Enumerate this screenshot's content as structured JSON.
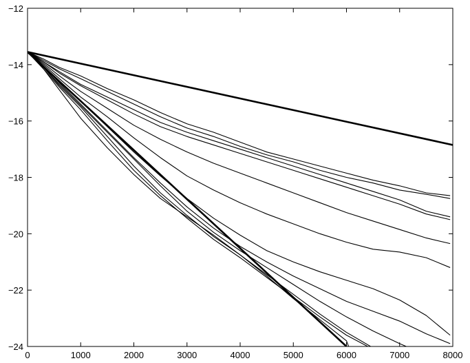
{
  "chart_data": {
    "type": "line",
    "title": "",
    "xlabel": "",
    "ylabel": "",
    "xlim": [
      0,
      8000
    ],
    "ylim": [
      -24,
      -12
    ],
    "grid": false,
    "x_ticks": [
      0,
      1000,
      2000,
      3000,
      4000,
      5000,
      6000,
      7000,
      8000
    ],
    "y_ticks": [
      -24,
      -22,
      -20,
      -18,
      -16,
      -14,
      -12
    ],
    "x_tick_labels": [
      "0",
      "1000",
      "2000",
      "3000",
      "4000",
      "5000",
      "6000",
      "7000",
      "8000"
    ],
    "y_tick_labels": [
      "−24",
      "−22",
      "−20",
      "−18",
      "−16",
      "−14",
      "−12"
    ],
    "series": [
      {
        "style": "bold",
        "x": [
          0,
          8000
        ],
        "values": [
          -13.55,
          -16.85
        ]
      },
      {
        "style": "bold",
        "x": [
          0,
          6000
        ],
        "values": [
          -13.55,
          -24.0
        ]
      },
      {
        "style": "thin",
        "x": [
          0,
          300,
          600,
          1000,
          1500,
          2000,
          2500,
          3000,
          3500,
          4000,
          4500,
          5000,
          5500,
          6000,
          6500,
          7000,
          7500,
          7950
        ],
        "values": [
          -13.55,
          -13.8,
          -14.1,
          -14.4,
          -14.85,
          -15.25,
          -15.7,
          -16.1,
          -16.4,
          -16.75,
          -17.1,
          -17.35,
          -17.6,
          -17.85,
          -18.1,
          -18.3,
          -18.55,
          -18.65
        ]
      },
      {
        "style": "thin",
        "x": [
          0,
          300,
          600,
          1000,
          1500,
          2000,
          2500,
          3000,
          3500,
          4000,
          4500,
          5000,
          5500,
          6000,
          6500,
          7000,
          7500,
          7950
        ],
        "values": [
          -13.55,
          -13.85,
          -14.15,
          -14.5,
          -14.95,
          -15.4,
          -15.85,
          -16.25,
          -16.55,
          -16.9,
          -17.2,
          -17.45,
          -17.75,
          -18.0,
          -18.2,
          -18.45,
          -18.6,
          -18.75
        ]
      },
      {
        "style": "thin",
        "x": [
          0,
          300,
          600,
          1000,
          1500,
          2000,
          2500,
          3000,
          3500,
          4000,
          4500,
          5000,
          5500,
          6000,
          6500,
          7000,
          7500,
          7950
        ],
        "values": [
          -13.55,
          -13.9,
          -14.25,
          -14.7,
          -15.15,
          -15.6,
          -16.05,
          -16.4,
          -16.7,
          -17.0,
          -17.3,
          -17.6,
          -17.9,
          -18.2,
          -18.5,
          -18.8,
          -19.2,
          -19.4
        ]
      },
      {
        "style": "thin",
        "x": [
          0,
          300,
          600,
          1000,
          1500,
          2000,
          2500,
          3000,
          3500,
          4000,
          4500,
          5000,
          5500,
          6000,
          6500,
          7000,
          7500,
          7950
        ],
        "values": [
          -13.55,
          -13.9,
          -14.3,
          -14.75,
          -15.25,
          -15.75,
          -16.2,
          -16.55,
          -16.85,
          -17.15,
          -17.45,
          -17.75,
          -18.05,
          -18.35,
          -18.65,
          -18.95,
          -19.3,
          -19.5
        ]
      },
      {
        "style": "thin",
        "x": [
          0,
          300,
          600,
          1000,
          1500,
          2000,
          2500,
          3000,
          3500,
          4000,
          4500,
          5000,
          5500,
          6000,
          6500,
          7000,
          7500,
          7950
        ],
        "values": [
          -13.55,
          -13.95,
          -14.4,
          -14.95,
          -15.55,
          -16.15,
          -16.65,
          -17.1,
          -17.5,
          -17.85,
          -18.2,
          -18.55,
          -18.9,
          -19.25,
          -19.55,
          -19.85,
          -20.15,
          -20.35
        ]
      },
      {
        "style": "thin",
        "x": [
          0,
          300,
          600,
          1000,
          1500,
          2000,
          2500,
          3000,
          3500,
          4000,
          4500,
          5000,
          5500,
          6000,
          6500,
          7000,
          7500,
          7950
        ],
        "values": [
          -13.55,
          -14.0,
          -14.5,
          -15.15,
          -15.85,
          -16.6,
          -17.3,
          -17.95,
          -18.45,
          -18.9,
          -19.3,
          -19.65,
          -20.0,
          -20.3,
          -20.55,
          -20.65,
          -20.85,
          -21.2
        ]
      },
      {
        "style": "thin",
        "x": [
          0,
          300,
          600,
          1000,
          1500,
          2000,
          2500,
          3000,
          3500,
          4000,
          4500,
          5000,
          5500,
          6000,
          6500,
          7000,
          7500,
          7950
        ],
        "values": [
          -13.55,
          -14.05,
          -14.6,
          -15.3,
          -16.2,
          -17.1,
          -17.95,
          -18.75,
          -19.45,
          -20.05,
          -20.6,
          -21.0,
          -21.35,
          -21.65,
          -21.95,
          -22.35,
          -22.9,
          -23.6
        ]
      },
      {
        "style": "thin",
        "x": [
          0,
          300,
          600,
          1000,
          1500,
          2000,
          2500,
          3000,
          3500,
          4000,
          4500,
          5000,
          5500,
          6000,
          6500,
          7000,
          7500,
          7950
        ],
        "values": [
          -13.55,
          -14.05,
          -14.65,
          -15.4,
          -16.35,
          -17.3,
          -18.2,
          -19.05,
          -19.8,
          -20.45,
          -21.0,
          -21.5,
          -21.95,
          -22.4,
          -22.75,
          -23.1,
          -23.55,
          -23.9
        ]
      },
      {
        "style": "thin",
        "x": [
          0,
          300,
          600,
          1000,
          1500,
          2000,
          2500,
          3000,
          3500,
          4000,
          4500,
          5000,
          5500,
          6000,
          6500,
          7000,
          7500,
          7950
        ],
        "values": [
          -13.55,
          -14.1,
          -14.7,
          -15.45,
          -16.4,
          -17.35,
          -18.3,
          -19.2,
          -19.95,
          -20.6,
          -21.2,
          -21.8,
          -22.4,
          -22.95,
          -23.45,
          -23.9,
          -24.3,
          -24.5
        ]
      },
      {
        "style": "thin",
        "x": [
          0,
          300,
          600,
          1000,
          1500,
          2000,
          2500,
          3000,
          3500,
          4000,
          4500,
          5000,
          5500,
          6000,
          6500,
          7000
        ],
        "values": [
          -13.55,
          -14.1,
          -14.75,
          -15.5,
          -16.55,
          -17.6,
          -18.55,
          -19.35,
          -20.1,
          -20.75,
          -21.45,
          -22.15,
          -22.85,
          -23.5,
          -24.05,
          -24.6
        ]
      },
      {
        "style": "thin",
        "x": [
          0,
          300,
          600,
          1000,
          1500,
          2000,
          2500,
          3000,
          3500,
          4000,
          4500,
          5000,
          5500,
          6000,
          6500,
          6900
        ],
        "values": [
          -13.55,
          -14.15,
          -14.8,
          -15.6,
          -16.7,
          -17.75,
          -18.65,
          -19.45,
          -20.2,
          -20.85,
          -21.55,
          -22.25,
          -22.95,
          -23.6,
          -24.1,
          -24.5
        ]
      },
      {
        "style": "thin",
        "x": [
          0,
          300,
          600,
          1000,
          1500,
          2000,
          2500,
          3000,
          3500,
          4000,
          4500,
          5000,
          5500,
          6000,
          6050
        ],
        "values": [
          -13.55,
          -14.15,
          -14.9,
          -15.9,
          -16.95,
          -17.9,
          -18.75,
          -19.4,
          -20.05,
          -20.75,
          -21.5,
          -22.3,
          -23.05,
          -23.8,
          -24.05
        ]
      }
    ]
  }
}
